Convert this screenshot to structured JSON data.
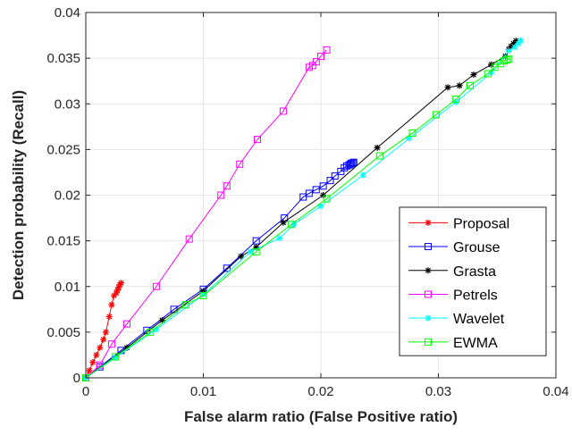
{
  "chart_data": {
    "type": "line",
    "title": "",
    "xlabel": "False alarm ratio (False Positive ratio)",
    "ylabel": "Detection probability (Recall)",
    "xlim": [
      0,
      0.04
    ],
    "ylim": [
      0,
      0.04
    ],
    "x_ticks": [
      "0",
      "0.01",
      "0.02",
      "0.03",
      "0.04"
    ],
    "y_ticks": [
      "0",
      "0.005",
      "0.01",
      "0.015",
      "0.02",
      "0.025",
      "0.03",
      "0.035",
      "0.04"
    ],
    "grid": true,
    "legend_position": "bottom-right",
    "series": [
      {
        "name": "Proposal",
        "color": "#ff0000",
        "marker": "asterisk",
        "x": [
          0,
          0.0003,
          0.0006,
          0.0009,
          0.0012,
          0.0015,
          0.0017,
          0.002,
          0.0022,
          0.0024,
          0.0026,
          0.0027,
          0.0028,
          0.0029,
          0.003
        ],
        "y": [
          0,
          0.0008,
          0.0017,
          0.0025,
          0.0033,
          0.0042,
          0.005,
          0.0067,
          0.008,
          0.009,
          0.0093,
          0.0096,
          0.0099,
          0.0102,
          0.0104
        ]
      },
      {
        "name": "Grouse",
        "color": "#0000ff",
        "marker": "square",
        "x": [
          0,
          0.0012,
          0.003,
          0.0052,
          0.0075,
          0.01,
          0.012,
          0.0145,
          0.0169,
          0.0185,
          0.019,
          0.0196,
          0.0202,
          0.0208,
          0.0212,
          0.0217,
          0.022,
          0.0222,
          0.0224,
          0.0225,
          0.0226,
          0.0227,
          0.0228
        ],
        "y": [
          0,
          0.0012,
          0.003,
          0.0052,
          0.0075,
          0.0097,
          0.012,
          0.015,
          0.0175,
          0.0198,
          0.0202,
          0.0206,
          0.021,
          0.0216,
          0.0221,
          0.0226,
          0.023,
          0.0232,
          0.0233,
          0.0234,
          0.0235,
          0.0235,
          0.0236
        ]
      },
      {
        "name": "Grasta",
        "color": "#000000",
        "marker": "asterisk",
        "x": [
          0,
          0.0035,
          0.0065,
          0.01,
          0.0132,
          0.0145,
          0.0168,
          0.0202,
          0.0248,
          0.0308,
          0.0318,
          0.033,
          0.0345,
          0.0357,
          0.036,
          0.0362,
          0.0364,
          0.0366
        ],
        "y": [
          0,
          0.0033,
          0.0063,
          0.0095,
          0.0133,
          0.0143,
          0.017,
          0.02,
          0.0252,
          0.0318,
          0.032,
          0.0332,
          0.0343,
          0.0352,
          0.036,
          0.0363,
          0.0366,
          0.0369
        ]
      },
      {
        "name": "Petrels",
        "color": "#ff00ff",
        "marker": "square",
        "x": [
          0,
          0.0012,
          0.0022,
          0.0035,
          0.006,
          0.0088,
          0.0115,
          0.012,
          0.0131,
          0.0146,
          0.0168,
          0.019,
          0.0193,
          0.0196,
          0.02,
          0.0205
        ],
        "y": [
          0,
          0.0014,
          0.0037,
          0.0059,
          0.01,
          0.0152,
          0.02,
          0.021,
          0.0234,
          0.0261,
          0.0292,
          0.034,
          0.0342,
          0.0346,
          0.0352,
          0.0359
        ]
      },
      {
        "name": "Wavelet",
        "color": "#00ffff",
        "marker": "asterisk",
        "x": [
          0,
          0.0025,
          0.006,
          0.01,
          0.014,
          0.0165,
          0.0177,
          0.02,
          0.0236,
          0.0275,
          0.0315,
          0.0345,
          0.036,
          0.0365,
          0.0368,
          0.037
        ],
        "y": [
          0,
          0.0022,
          0.0053,
          0.0091,
          0.0138,
          0.0153,
          0.0168,
          0.0188,
          0.0222,
          0.0262,
          0.0302,
          0.0334,
          0.0358,
          0.0362,
          0.0366,
          0.0369
        ]
      },
      {
        "name": "EWMA",
        "color": "#00ff00",
        "marker": "square",
        "x": [
          0,
          0.0025,
          0.0055,
          0.0085,
          0.01,
          0.0145,
          0.0175,
          0.0205,
          0.025,
          0.0278,
          0.0298,
          0.0315,
          0.0327,
          0.0342,
          0.0348,
          0.0353,
          0.0356,
          0.0358,
          0.036
        ],
        "y": [
          0,
          0.0023,
          0.005,
          0.008,
          0.009,
          0.0138,
          0.0168,
          0.0196,
          0.0243,
          0.0268,
          0.0288,
          0.0305,
          0.032,
          0.0333,
          0.034,
          0.0344,
          0.0347,
          0.0348,
          0.0349
        ]
      }
    ]
  }
}
